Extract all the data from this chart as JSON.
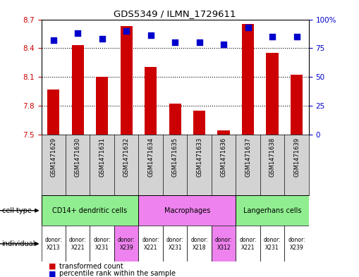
{
  "title": "GDS5349 / ILMN_1729611",
  "samples": [
    "GSM1471629",
    "GSM1471630",
    "GSM1471631",
    "GSM1471632",
    "GSM1471634",
    "GSM1471635",
    "GSM1471633",
    "GSM1471636",
    "GSM1471637",
    "GSM1471638",
    "GSM1471639"
  ],
  "red_values": [
    7.97,
    8.43,
    8.1,
    8.63,
    8.2,
    7.82,
    7.75,
    7.54,
    8.65,
    8.35,
    8.12
  ],
  "blue_values": [
    82,
    88,
    83,
    90,
    86,
    80,
    80,
    78,
    93,
    85,
    85
  ],
  "ylim_left": [
    7.5,
    8.7
  ],
  "ylim_right": [
    0,
    100
  ],
  "yticks_left": [
    7.5,
    7.8,
    8.1,
    8.4,
    8.7
  ],
  "yticks_right": [
    0,
    25,
    50,
    75,
    100
  ],
  "ytick_labels_left": [
    "7.5",
    "7.8",
    "8.1",
    "8.4",
    "8.7"
  ],
  "ytick_labels_right": [
    "0",
    "25",
    "50",
    "75",
    "100%"
  ],
  "cell_type_groups": [
    {
      "label": "CD14+ dendritic cells",
      "cols": [
        0,
        1,
        2,
        3
      ],
      "color": "#90EE90"
    },
    {
      "label": "Macrophages",
      "cols": [
        4,
        5,
        6,
        7
      ],
      "color": "#ee82ee"
    },
    {
      "label": "Langerhans cells",
      "cols": [
        8,
        9,
        10
      ],
      "color": "#90EE90"
    }
  ],
  "indiv_labels": [
    "donor:\nX213",
    "donor:\nX221",
    "donor:\nX231",
    "donor:\nX239",
    "donor:\nX221",
    "donor:\nX231",
    "donor:\nX218",
    "donor:\nX312",
    "donor:\nX221",
    "donor:\nX231",
    "donor:\nX239"
  ],
  "indiv_colors": [
    "#ffffff",
    "#ffffff",
    "#ffffff",
    "#ee82ee",
    "#ffffff",
    "#ffffff",
    "#ffffff",
    "#ee82ee",
    "#ffffff",
    "#ffffff",
    "#ffffff"
  ],
  "bar_color": "#cc0000",
  "dot_color": "#0000cc",
  "bar_width": 0.5,
  "dot_size": 30,
  "bg_color": "#ffffff",
  "sample_bg_color": "#d3d3d3",
  "left_label_color": "#cc0000",
  "right_label_color": "#0000cc"
}
